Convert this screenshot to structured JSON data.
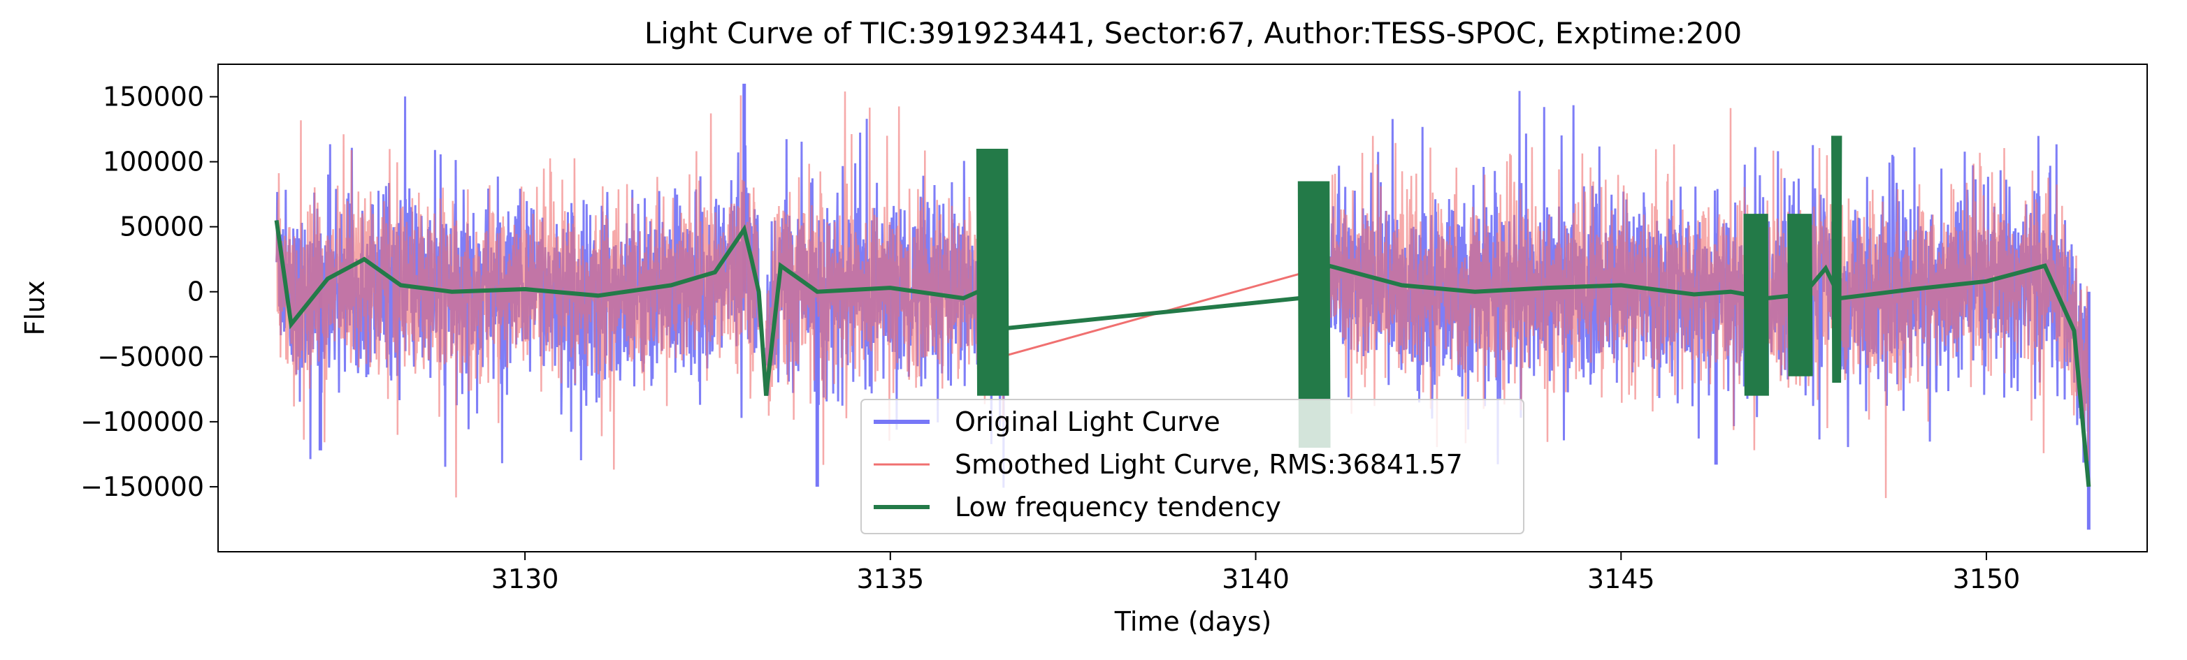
{
  "chart_data": {
    "type": "line",
    "title": "Light Curve of TIC:391923441, Sector:67, Author:TESS-SPOC, Exptime:200",
    "xlabel": "Time (days)",
    "ylabel": "Flux",
    "xlim": [
      3125.8,
      3152.2
    ],
    "ylim": [
      -200000,
      175000
    ],
    "xticks": [
      3130,
      3135,
      3140,
      3145,
      3150
    ],
    "yticks": [
      150000,
      100000,
      50000,
      0,
      -50000,
      -100000,
      -150000
    ],
    "xtick_labels": [
      "3130",
      "3135",
      "3140",
      "3145",
      "3150"
    ],
    "ytick_labels": [
      "150000",
      "100000",
      "50000",
      "0",
      "−50000",
      "−100000",
      "−150000"
    ],
    "grid": false,
    "legend_position": "lower-center",
    "segments": [
      [
        3126.6,
        3133.2
      ],
      [
        3133.3,
        3136.6
      ],
      [
        3140.6,
        3151.4
      ]
    ],
    "series": [
      {
        "name": "Original Light Curve",
        "color": "#7777f7",
        "typical_amplitude": 60000,
        "spikes": [
          [
            3133.0,
            160000
          ],
          [
            3151.4,
            -183000
          ],
          [
            3134.0,
            -150000
          ],
          [
            3127.2,
            -122000
          ],
          [
            3146.3,
            -133000
          ]
        ]
      },
      {
        "name": "Smoothed Light Curve, RMS:36841.57",
        "color": "#f07070",
        "rms": 36841.57,
        "typical_amplitude": 60000,
        "gap_line": [
          [
            3136.2,
            -55000
          ],
          [
            3141.0,
            20000
          ]
        ]
      },
      {
        "name": "Low frequency tendency",
        "color": "#237a48",
        "anchors": [
          [
            3126.6,
            55000
          ],
          [
            3126.8,
            -25000
          ],
          [
            3127.3,
            10000
          ],
          [
            3127.8,
            25000
          ],
          [
            3128.3,
            5000
          ],
          [
            3129.0,
            0
          ],
          [
            3130.0,
            2000
          ],
          [
            3131.0,
            -3000
          ],
          [
            3132.0,
            5000
          ],
          [
            3132.6,
            15000
          ],
          [
            3133.0,
            48000
          ],
          [
            3133.1,
            25000
          ],
          [
            3133.2,
            0
          ],
          [
            3133.3,
            -80000
          ],
          [
            3133.5,
            20000
          ],
          [
            3134.0,
            0
          ],
          [
            3135.0,
            3000
          ],
          [
            3136.0,
            -5000
          ],
          [
            3136.2,
            0
          ],
          [
            3136.6,
            -28000
          ],
          [
            3140.6,
            -5000
          ],
          [
            3140.9,
            5000
          ],
          [
            3141.0,
            20000
          ],
          [
            3142.0,
            5000
          ],
          [
            3143.0,
            0
          ],
          [
            3144.0,
            3000
          ],
          [
            3145.0,
            5000
          ],
          [
            3146.0,
            -2000
          ],
          [
            3146.5,
            0
          ],
          [
            3147.0,
            -5000
          ],
          [
            3147.5,
            -2000
          ],
          [
            3147.8,
            18000
          ],
          [
            3148.0,
            -5000
          ],
          [
            3149.0,
            2000
          ],
          [
            3150.0,
            8000
          ],
          [
            3150.8,
            20000
          ],
          [
            3151.2,
            -30000
          ],
          [
            3151.4,
            -150000
          ]
        ],
        "burst_regions": [
          [
            3136.2,
            3136.6,
            110000,
            -80000
          ],
          [
            3140.6,
            3141.0,
            85000,
            -120000
          ],
          [
            3146.7,
            3147.0,
            60000,
            -80000
          ],
          [
            3147.3,
            3147.6,
            60000,
            -65000
          ],
          [
            3147.9,
            3148.0,
            120000,
            -70000
          ]
        ]
      }
    ]
  }
}
